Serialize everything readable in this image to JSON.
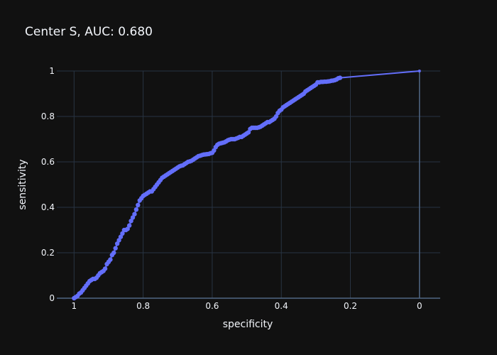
{
  "chart_data": {
    "type": "line",
    "title": "Center S, AUC: 0.680",
    "xlabel": "specificity",
    "ylabel": "sensitivity",
    "x_reversed": true,
    "xlim": [
      1.05,
      -0.06
    ],
    "ylim": [
      0,
      1
    ],
    "xticks": [
      1,
      0.8,
      0.6,
      0.4,
      0.2,
      0
    ],
    "xtick_labels": [
      "1",
      "0.8",
      "0.6",
      "0.4",
      "0.2",
      "0"
    ],
    "yticks": [
      0,
      0.2,
      0.4,
      0.6,
      0.8,
      1
    ],
    "ytick_labels": [
      "0",
      "0.2",
      "0.4",
      "0.6",
      "0.8",
      "1"
    ],
    "grid": true,
    "colors": {
      "background": "#111111",
      "grid": "#283442",
      "series": "#636efa",
      "text": "#f2f5fa"
    },
    "series": [
      {
        "mode": "lines+markers",
        "x": [
          1.0,
          0.995,
          0.99,
          0.985,
          0.98,
          0.975,
          0.97,
          0.965,
          0.96,
          0.955,
          0.95,
          0.945,
          0.94,
          0.935,
          0.93,
          0.925,
          0.92,
          0.915,
          0.91,
          0.905,
          0.9,
          0.895,
          0.89,
          0.885,
          0.88,
          0.875,
          0.87,
          0.865,
          0.86,
          0.855,
          0.85,
          0.845,
          0.84,
          0.835,
          0.83,
          0.825,
          0.82,
          0.815,
          0.81,
          0.805,
          0.8,
          0.795,
          0.79,
          0.785,
          0.78,
          0.775,
          0.77,
          0.765,
          0.76,
          0.755,
          0.75,
          0.745,
          0.74,
          0.735,
          0.73,
          0.725,
          0.72,
          0.715,
          0.71,
          0.705,
          0.7,
          0.695,
          0.69,
          0.685,
          0.68,
          0.675,
          0.67,
          0.665,
          0.66,
          0.655,
          0.65,
          0.645,
          0.64,
          0.635,
          0.63,
          0.625,
          0.62,
          0.615,
          0.61,
          0.605,
          0.6,
          0.595,
          0.59,
          0.585,
          0.58,
          0.575,
          0.57,
          0.565,
          0.56,
          0.555,
          0.55,
          0.545,
          0.54,
          0.535,
          0.53,
          0.525,
          0.52,
          0.515,
          0.51,
          0.505,
          0.5,
          0.495,
          0.49,
          0.485,
          0.48,
          0.475,
          0.47,
          0.465,
          0.46,
          0.455,
          0.45,
          0.445,
          0.44,
          0.435,
          0.43,
          0.425,
          0.42,
          0.415,
          0.41,
          0.405,
          0.4,
          0.395,
          0.39,
          0.385,
          0.38,
          0.375,
          0.37,
          0.365,
          0.36,
          0.355,
          0.35,
          0.345,
          0.34,
          0.335,
          0.33,
          0.325,
          0.32,
          0.315,
          0.31,
          0.305,
          0.3,
          0.295,
          0.29,
          0.285,
          0.28,
          0.275,
          0.27,
          0.265,
          0.26,
          0.255,
          0.25,
          0.245,
          0.24,
          0.235,
          0.23,
          0.0
        ],
        "y": [
          0.0,
          0.005,
          0.01,
          0.02,
          0.025,
          0.035,
          0.045,
          0.055,
          0.065,
          0.075,
          0.08,
          0.085,
          0.085,
          0.09,
          0.1,
          0.11,
          0.115,
          0.12,
          0.13,
          0.15,
          0.16,
          0.17,
          0.19,
          0.2,
          0.22,
          0.24,
          0.255,
          0.27,
          0.285,
          0.3,
          0.3,
          0.305,
          0.32,
          0.34,
          0.355,
          0.37,
          0.39,
          0.41,
          0.43,
          0.44,
          0.45,
          0.455,
          0.46,
          0.465,
          0.47,
          0.47,
          0.48,
          0.49,
          0.5,
          0.51,
          0.52,
          0.53,
          0.535,
          0.54,
          0.545,
          0.55,
          0.555,
          0.56,
          0.565,
          0.57,
          0.575,
          0.58,
          0.583,
          0.585,
          0.59,
          0.595,
          0.6,
          0.602,
          0.605,
          0.61,
          0.615,
          0.62,
          0.625,
          0.627,
          0.63,
          0.632,
          0.633,
          0.634,
          0.635,
          0.638,
          0.64,
          0.65,
          0.665,
          0.675,
          0.68,
          0.682,
          0.684,
          0.686,
          0.69,
          0.695,
          0.698,
          0.7,
          0.7,
          0.7,
          0.703,
          0.706,
          0.71,
          0.71,
          0.715,
          0.72,
          0.725,
          0.73,
          0.745,
          0.75,
          0.75,
          0.75,
          0.75,
          0.752,
          0.755,
          0.76,
          0.765,
          0.77,
          0.775,
          0.775,
          0.78,
          0.785,
          0.79,
          0.8,
          0.815,
          0.825,
          0.83,
          0.84,
          0.845,
          0.85,
          0.855,
          0.86,
          0.865,
          0.87,
          0.875,
          0.88,
          0.885,
          0.89,
          0.895,
          0.9,
          0.91,
          0.915,
          0.92,
          0.925,
          0.93,
          0.935,
          0.94,
          0.95,
          0.95,
          0.952,
          0.952,
          0.953,
          0.953,
          0.954,
          0.955,
          0.957,
          0.958,
          0.96,
          0.963,
          0.968,
          0.97,
          1.0
        ]
      }
    ]
  }
}
